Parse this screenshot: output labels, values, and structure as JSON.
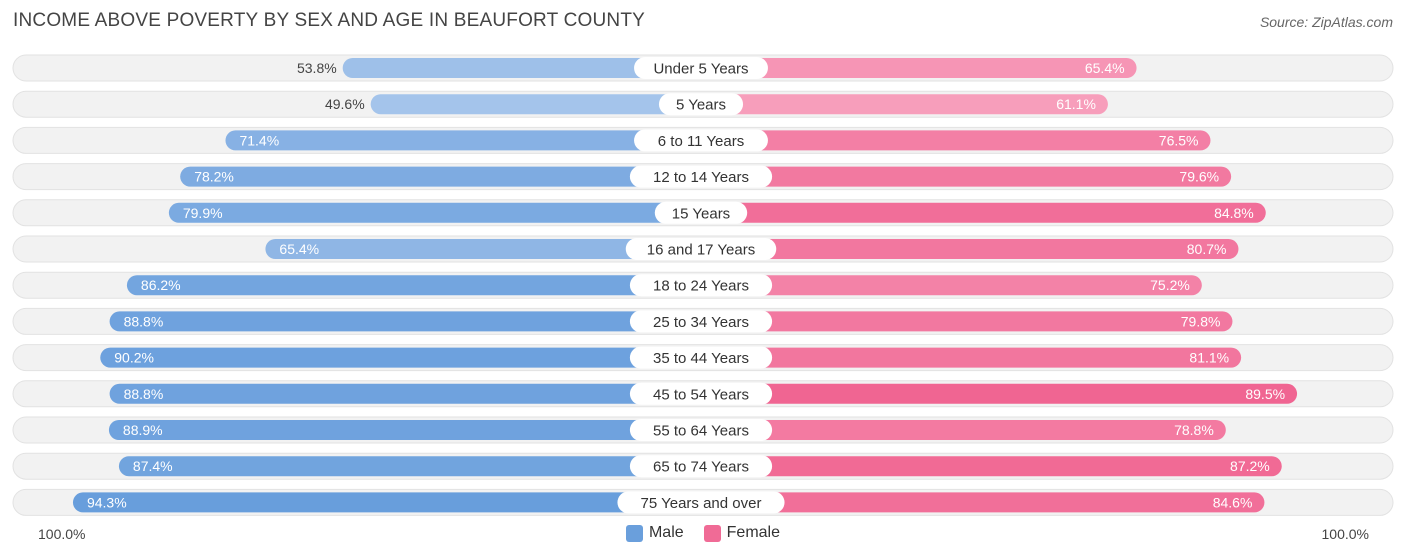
{
  "header": {
    "title": "INCOME ABOVE POVERTY BY SEX AND AGE IN BEAUFORT COUNTY",
    "source": "Source: ZipAtlas.com"
  },
  "axis": {
    "left_label": "100.0%",
    "right_label": "100.0%"
  },
  "legend": [
    {
      "label": "Male",
      "color": "#6a9fdc"
    },
    {
      "label": "Female",
      "color": "#f06b96"
    }
  ],
  "chart_data": {
    "type": "bar",
    "orientation": "horizontal-diverging",
    "title": "INCOME ABOVE POVERTY BY SEX AND AGE IN BEAUFORT COUNTY",
    "xlim": [
      0,
      100
    ],
    "categories": [
      "Under 5 Years",
      "5 Years",
      "6 to 11 Years",
      "12 to 14 Years",
      "15 Years",
      "16 and 17 Years",
      "18 to 24 Years",
      "25 to 34 Years",
      "35 to 44 Years",
      "45 to 54 Years",
      "55 to 64 Years",
      "65 to 74 Years",
      "75 Years and over"
    ],
    "series": [
      {
        "name": "Male",
        "values": [
          53.8,
          49.6,
          71.4,
          78.2,
          79.9,
          65.4,
          86.2,
          88.8,
          90.2,
          88.8,
          88.9,
          87.4,
          94.3
        ]
      },
      {
        "name": "Female",
        "values": [
          65.4,
          61.1,
          76.5,
          79.6,
          84.8,
          80.7,
          75.2,
          79.8,
          81.1,
          89.5,
          78.8,
          87.2,
          84.6
        ]
      }
    ],
    "value_labels": {
      "Male": [
        "53.8%",
        "49.6%",
        "71.4%",
        "78.2%",
        "79.9%",
        "65.4%",
        "86.2%",
        "88.8%",
        "90.2%",
        "88.8%",
        "88.9%",
        "87.4%",
        "94.3%"
      ],
      "Female": [
        "65.4%",
        "61.1%",
        "76.5%",
        "79.6%",
        "84.8%",
        "80.7%",
        "75.2%",
        "79.8%",
        "81.1%",
        "89.5%",
        "78.8%",
        "87.2%",
        "84.6%"
      ]
    },
    "legend_position": "bottom-center"
  }
}
